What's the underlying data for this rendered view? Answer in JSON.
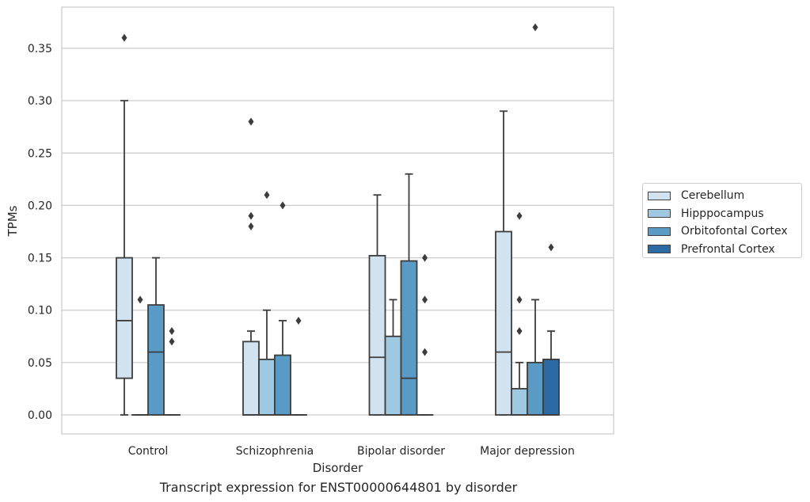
{
  "caption": "Transcript expression for ENST00000644801 by disorder",
  "chart_data": {
    "type": "box",
    "title": "",
    "xlabel": "Disorder",
    "ylabel": "TPMs",
    "ylim": [
      -0.018,
      0.387
    ],
    "yticks": [
      "0.00",
      "0.05",
      "0.10",
      "0.15",
      "0.20",
      "0.25",
      "0.30",
      "0.35"
    ],
    "ytick_values": [
      0,
      0.05,
      0.1,
      0.15,
      0.2,
      0.25,
      0.3,
      0.35
    ],
    "grid": "horizontal",
    "legend_position": "right",
    "categories": [
      "Control",
      "Schizophrenia",
      "Bipolar disorder",
      "Major depression"
    ],
    "series": [
      {
        "name": "Cerebellum",
        "color": "#d1e2f1"
      },
      {
        "name": "Hipppocampus",
        "color": "#9ec9e0"
      },
      {
        "name": "Orbitofontal Cortex",
        "color": "#5a9bc6"
      },
      {
        "name": "Prefrontal Cortex",
        "color": "#2c6aa6"
      }
    ],
    "boxes": [
      {
        "category": 0,
        "series": 0,
        "whislo": 0,
        "q1": 0.035,
        "med": 0.09,
        "q3": 0.15,
        "whishi": 0.3,
        "fliers": [
          0.36
        ]
      },
      {
        "category": 0,
        "series": 1,
        "whislo": 0,
        "q1": 0,
        "med": 0,
        "q3": 0,
        "whishi": 0,
        "fliers": [
          0.11
        ]
      },
      {
        "category": 0,
        "series": 2,
        "whislo": 0,
        "q1": 0,
        "med": 0.06,
        "q3": 0.105,
        "whishi": 0.15,
        "fliers": []
      },
      {
        "category": 0,
        "series": 3,
        "whislo": 0,
        "q1": 0,
        "med": 0,
        "q3": 0,
        "whishi": 0,
        "fliers": [
          0.08,
          0.07
        ]
      },
      {
        "category": 1,
        "series": 0,
        "whislo": 0,
        "q1": 0,
        "med": 0,
        "q3": 0.07,
        "whishi": 0.08,
        "fliers": [
          0.28,
          0.19,
          0.18
        ]
      },
      {
        "category": 1,
        "series": 1,
        "whislo": 0,
        "q1": 0,
        "med": 0,
        "q3": 0.053,
        "whishi": 0.1,
        "fliers": [
          0.21
        ]
      },
      {
        "category": 1,
        "series": 2,
        "whislo": 0,
        "q1": 0,
        "med": 0,
        "q3": 0.057,
        "whishi": 0.09,
        "fliers": [
          0.2
        ]
      },
      {
        "category": 1,
        "series": 3,
        "whislo": 0,
        "q1": 0,
        "med": 0,
        "q3": 0,
        "whishi": 0,
        "fliers": [
          0.09
        ]
      },
      {
        "category": 2,
        "series": 0,
        "whislo": 0,
        "q1": 0,
        "med": 0.055,
        "q3": 0.152,
        "whishi": 0.21,
        "fliers": []
      },
      {
        "category": 2,
        "series": 1,
        "whislo": 0,
        "q1": 0,
        "med": 0,
        "q3": 0.075,
        "whishi": 0.11,
        "fliers": []
      },
      {
        "category": 2,
        "series": 2,
        "whislo": 0,
        "q1": 0,
        "med": 0.035,
        "q3": 0.147,
        "whishi": 0.23,
        "fliers": []
      },
      {
        "category": 2,
        "series": 3,
        "whislo": 0,
        "q1": 0,
        "med": 0,
        "q3": 0,
        "whishi": 0,
        "fliers": [
          0.15,
          0.11,
          0.06
        ]
      },
      {
        "category": 3,
        "series": 0,
        "whislo": 0,
        "q1": 0,
        "med": 0.06,
        "q3": 0.175,
        "whishi": 0.29,
        "fliers": []
      },
      {
        "category": 3,
        "series": 1,
        "whislo": 0,
        "q1": 0,
        "med": 0,
        "q3": 0.025,
        "whishi": 0.05,
        "fliers": [
          0.19,
          0.11,
          0.08
        ]
      },
      {
        "category": 3,
        "series": 2,
        "whislo": 0,
        "q1": 0,
        "med": 0,
        "q3": 0.05,
        "whishi": 0.11,
        "fliers": [
          0.37
        ]
      },
      {
        "category": 3,
        "series": 3,
        "whislo": 0,
        "q1": 0,
        "med": 0,
        "q3": 0.053,
        "whishi": 0.08,
        "fliers": [
          0.16
        ]
      }
    ]
  }
}
